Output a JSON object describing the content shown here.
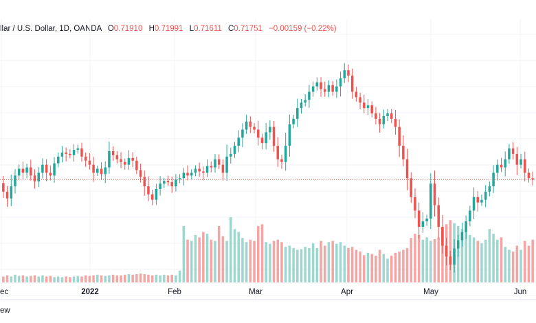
{
  "header": {
    "symbol": "llar / U.S. Dollar, 1D, OANDA",
    "o_label": "O",
    "o_value": "0.71910",
    "h_label": "H",
    "h_value": "0.71991",
    "l_label": "L",
    "l_value": "0.71611",
    "c_label": "C",
    "c_value": "0.71751",
    "change": "−0.00159 (−0.22%)"
  },
  "footer": {
    "label": "ew"
  },
  "colors": {
    "up": "#26a69a",
    "down": "#ef5350",
    "vol_up": "#9fd6d0",
    "vol_down": "#f4a6a4",
    "grid": "#f0f3fa",
    "last_line": "#ef5350",
    "axis_text": "#131722"
  },
  "chart_data": {
    "type": "candlestick",
    "title": "",
    "xlabel": "",
    "ylabel": "",
    "x_tick_labels": [
      "ec",
      "2022",
      "Feb",
      "Mar",
      "Apr",
      "May",
      "Jun"
    ],
    "last_price_line": 0.71751,
    "grid": true,
    "ylim": [
      0.7,
      0.77
    ],
    "price_path": [
      0.7162,
      0.713,
      0.7105,
      0.715,
      0.719,
      0.7215,
      0.72,
      0.722,
      0.719,
      0.7168,
      0.72,
      0.723,
      0.72,
      0.719,
      0.7235,
      0.726,
      0.7275,
      0.727,
      0.7265,
      0.7285,
      0.729,
      0.726,
      0.7245,
      0.723,
      0.72,
      0.7215,
      0.7195,
      0.722,
      0.728,
      0.7265,
      0.725,
      0.724,
      0.723,
      0.7255,
      0.7245,
      0.721,
      0.7185,
      0.715,
      0.712,
      0.71,
      0.714,
      0.716,
      0.717,
      0.7165,
      0.715,
      0.7175,
      0.718,
      0.72,
      0.719,
      0.72,
      0.7215,
      0.7205,
      0.72,
      0.7225,
      0.722,
      0.725,
      0.723,
      0.72,
      0.726,
      0.727,
      0.73,
      0.733,
      0.736,
      0.739,
      0.737,
      0.736,
      0.733,
      0.731,
      0.735,
      0.737,
      0.73,
      0.725,
      0.724,
      0.73,
      0.738,
      0.74,
      0.744,
      0.746,
      0.747,
      0.75,
      0.752,
      0.7535,
      0.751,
      0.75,
      0.7525,
      0.75,
      0.752,
      0.755,
      0.758,
      0.756,
      0.75,
      0.748,
      0.746,
      0.744,
      0.745,
      0.742,
      0.74,
      0.738,
      0.741,
      0.742,
      0.74,
      0.737,
      0.73,
      0.725,
      0.718,
      0.711,
      0.706,
      0.7,
      0.702,
      0.703,
      0.716,
      0.708,
      0.7,
      0.693,
      0.689,
      0.686,
      0.692,
      0.695,
      0.698,
      0.702,
      0.706,
      0.711,
      0.709,
      0.71,
      0.713,
      0.715,
      0.72,
      0.723,
      0.722,
      0.725,
      0.729,
      0.727,
      0.723,
      0.725,
      0.72,
      0.718,
      0.7175
    ],
    "volume": [
      0.1,
      0.12,
      0.1,
      0.13,
      0.11,
      0.12,
      0.1,
      0.11,
      0.12,
      0.1,
      0.12,
      0.1,
      0.11,
      0.09,
      0.1,
      0.09,
      0.1,
      0.09,
      0.1,
      0.11,
      0.1,
      0.12,
      0.11,
      0.12,
      0.13,
      0.12,
      0.11,
      0.12,
      0.13,
      0.12,
      0.12,
      0.13,
      0.14,
      0.13,
      0.14,
      0.15,
      0.14,
      0.13,
      0.12,
      0.13,
      0.12,
      0.13,
      0.12,
      0.13,
      0.12,
      0.2,
      0.95,
      0.72,
      0.7,
      0.8,
      0.76,
      0.85,
      0.82,
      0.72,
      0.7,
      0.95,
      0.78,
      0.7,
      1.1,
      0.9,
      0.85,
      0.75,
      0.68,
      0.72,
      0.7,
      0.95,
      0.98,
      0.68,
      0.65,
      0.7,
      0.72,
      0.68,
      0.6,
      0.62,
      0.58,
      0.55,
      0.56,
      0.6,
      0.58,
      0.66,
      0.58,
      0.7,
      0.62,
      0.68,
      0.7,
      0.65,
      0.68,
      0.62,
      0.58,
      0.6,
      0.55,
      0.52,
      0.46,
      0.5,
      0.48,
      0.45,
      0.55,
      0.48,
      0.4,
      0.45,
      0.5,
      0.52,
      0.55,
      0.58,
      0.75,
      0.82,
      0.8,
      0.72,
      0.76,
      0.7,
      0.73,
      0.76,
      0.92,
      0.98,
      1.05,
      1.0,
      0.95,
      0.9,
      0.85,
      0.8,
      0.76,
      0.7,
      0.66,
      0.72,
      0.9,
      0.82,
      0.72,
      0.76,
      0.6,
      0.55,
      0.52,
      0.62,
      0.55,
      0.7,
      0.62,
      0.72,
      0.66,
      0.7,
      0.68
    ]
  }
}
